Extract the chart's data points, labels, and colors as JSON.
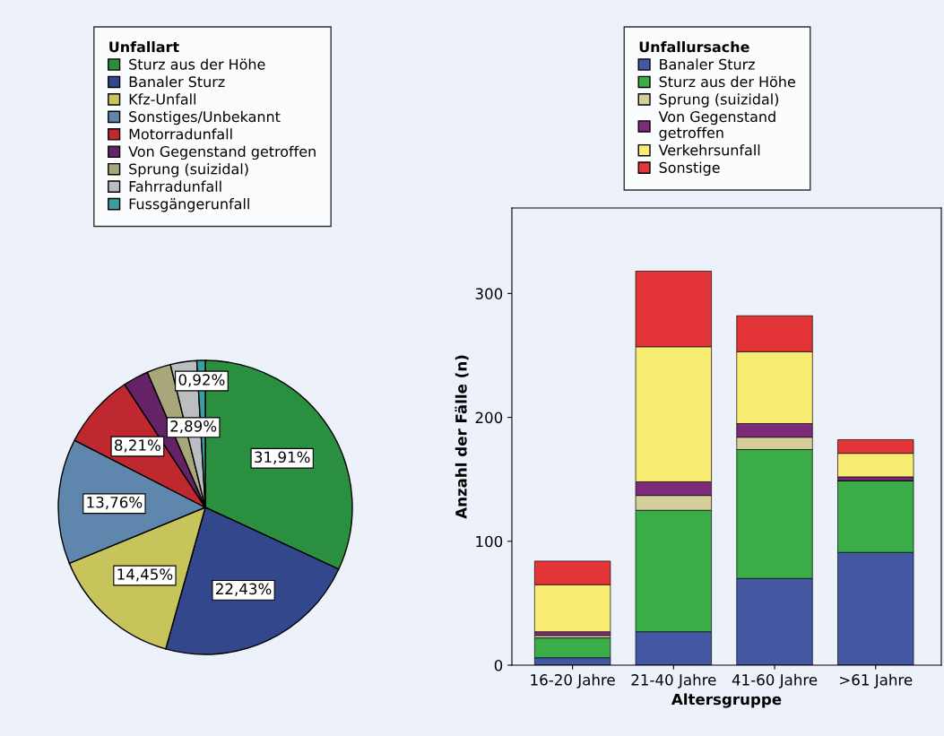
{
  "chart_data": [
    {
      "type": "pie",
      "legend_title": "Unfallart",
      "legend": "top",
      "categories": [
        "Sturz aus der Höhe",
        "Banaler Sturz",
        "Kfz-Unfall",
        "Sonstiges/Unbekannt",
        "Motorradunfall",
        "Von Gegenstand getroffen",
        "Sprung (suizidal)",
        "Fahrradunfall",
        "Fussgängerunfall"
      ],
      "values": [
        31.91,
        22.43,
        14.45,
        13.76,
        8.21,
        2.8,
        2.63,
        2.89,
        0.92
      ],
      "value_labels": [
        "31,91%",
        "22,43%",
        "14,45%",
        "13,76%",
        "8,21%",
        null,
        null,
        "2,89%",
        "0,92%"
      ],
      "colors": [
        "#2a9040",
        "#33478c",
        "#c8c45c",
        "#5f87ad",
        "#c0282f",
        "#642366",
        "#a8a77b",
        "#bcbdbf",
        "#3a9ea0"
      ]
    },
    {
      "type": "bar",
      "stacked": true,
      "legend_title": "Unfallursache",
      "legend": "top",
      "xlabel": "Altersgruppe",
      "ylabel": "Anzahl der Fälle (n)",
      "categories": [
        "16-20 Jahre",
        "21-40 Jahre",
        "41-60 Jahre",
        ">61 Jahre"
      ],
      "ylim": [
        0,
        369
      ],
      "yticks": [
        0,
        100,
        200,
        300
      ],
      "grid": false,
      "series": [
        {
          "name": "Banaler Sturz",
          "color": "#4457a3",
          "values": [
            6,
            27,
            70,
            91
          ]
        },
        {
          "name": "Sturz aus der Höhe",
          "color": "#3aac48",
          "values": [
            16,
            98,
            104,
            58
          ]
        },
        {
          "name": "Sprung (suizidal)",
          "color": "#d4cf9a",
          "values": [
            2,
            12,
            10,
            0
          ]
        },
        {
          "name": "Von Gegenstand\ngetroffen",
          "color": "#7e2a7b",
          "values": [
            3,
            11,
            11,
            3
          ]
        },
        {
          "name": "Verkehrsunfall",
          "color": "#f8ec72",
          "values": [
            38,
            109,
            58,
            19
          ]
        },
        {
          "name": "Sonstige",
          "color": "#e33437",
          "values": [
            19,
            61,
            29,
            11
          ]
        }
      ]
    }
  ]
}
